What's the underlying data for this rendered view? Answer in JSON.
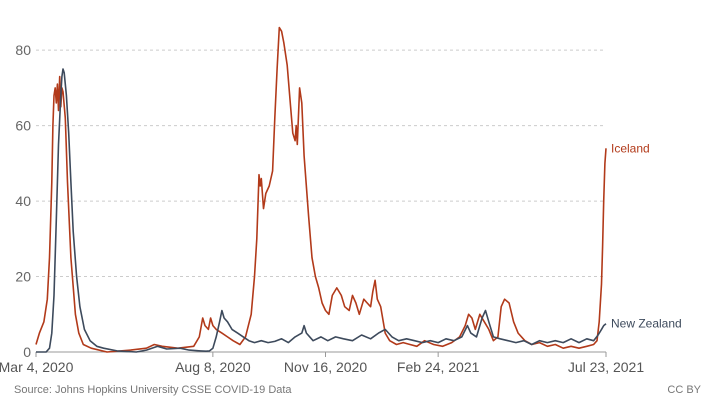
{
  "chart_data": {
    "type": "line",
    "x_ticks": [
      "Mar 4, 2020",
      "Aug 8, 2020",
      "Nov 16, 2020",
      "Feb 24, 2021",
      "Jul 23, 2021"
    ],
    "x_tick_dates": [
      "2020-03-04",
      "2020-08-08",
      "2020-11-16",
      "2021-02-24",
      "2021-07-23"
    ],
    "y_ticks": [
      0,
      20,
      40,
      60,
      80
    ],
    "ylim": [
      0,
      88
    ],
    "grid": "horizontal dashed",
    "series": [
      {
        "name": "Iceland",
        "color": "#b23a1a",
        "points": [
          [
            "2020-03-04",
            2
          ],
          [
            "2020-03-07",
            5
          ],
          [
            "2020-03-11",
            8
          ],
          [
            "2020-03-14",
            14
          ],
          [
            "2020-03-16",
            25
          ],
          [
            "2020-03-18",
            45
          ],
          [
            "2020-03-19",
            60
          ],
          [
            "2020-03-20",
            68
          ],
          [
            "2020-03-21",
            70
          ],
          [
            "2020-03-22",
            66
          ],
          [
            "2020-03-23",
            71
          ],
          [
            "2020-03-24",
            64
          ],
          [
            "2020-03-25",
            73
          ],
          [
            "2020-03-26",
            65
          ],
          [
            "2020-03-27",
            70
          ],
          [
            "2020-03-28",
            69
          ],
          [
            "2020-03-30",
            62
          ],
          [
            "2020-04-01",
            45
          ],
          [
            "2020-04-04",
            25
          ],
          [
            "2020-04-08",
            10
          ],
          [
            "2020-04-11",
            5
          ],
          [
            "2020-04-15",
            2
          ],
          [
            "2020-04-22",
            1
          ],
          [
            "2020-05-06",
            0
          ],
          [
            "2020-05-27",
            0.5
          ],
          [
            "2020-06-10",
            1
          ],
          [
            "2020-06-17",
            2
          ],
          [
            "2020-06-24",
            1.5
          ],
          [
            "2020-07-08",
            1
          ],
          [
            "2020-07-22",
            1.5
          ],
          [
            "2020-07-27",
            4
          ],
          [
            "2020-07-30",
            9
          ],
          [
            "2020-08-01",
            7
          ],
          [
            "2020-08-04",
            6
          ],
          [
            "2020-08-06",
            9
          ],
          [
            "2020-08-08",
            7
          ],
          [
            "2020-08-11",
            6
          ],
          [
            "2020-08-16",
            5
          ],
          [
            "2020-08-21",
            4
          ],
          [
            "2020-08-26",
            3
          ],
          [
            "2020-09-01",
            2
          ],
          [
            "2020-09-06",
            4
          ],
          [
            "2020-09-11",
            10
          ],
          [
            "2020-09-14",
            20
          ],
          [
            "2020-09-16",
            30
          ],
          [
            "2020-09-18",
            47
          ],
          [
            "2020-09-19",
            44
          ],
          [
            "2020-09-20",
            46
          ],
          [
            "2020-09-22",
            38
          ],
          [
            "2020-09-24",
            42
          ],
          [
            "2020-09-27",
            44
          ],
          [
            "2020-09-30",
            48
          ],
          [
            "2020-10-02",
            62
          ],
          [
            "2020-10-04",
            75
          ],
          [
            "2020-10-06",
            86
          ],
          [
            "2020-10-08",
            85
          ],
          [
            "2020-10-10",
            82
          ],
          [
            "2020-10-13",
            76
          ],
          [
            "2020-10-16",
            65
          ],
          [
            "2020-10-18",
            58
          ],
          [
            "2020-10-20",
            56
          ],
          [
            "2020-10-21",
            60
          ],
          [
            "2020-10-22",
            55
          ],
          [
            "2020-10-24",
            70
          ],
          [
            "2020-10-26",
            66
          ],
          [
            "2020-10-28",
            52
          ],
          [
            "2020-11-01",
            36
          ],
          [
            "2020-11-04",
            25
          ],
          [
            "2020-11-07",
            20
          ],
          [
            "2020-11-10",
            17
          ],
          [
            "2020-11-13",
            13
          ],
          [
            "2020-11-16",
            11
          ],
          [
            "2020-11-19",
            10
          ],
          [
            "2020-11-22",
            15
          ],
          [
            "2020-11-26",
            17
          ],
          [
            "2020-11-30",
            15
          ],
          [
            "2020-12-03",
            12
          ],
          [
            "2020-12-07",
            11
          ],
          [
            "2020-12-10",
            15
          ],
          [
            "2020-12-13",
            13
          ],
          [
            "2020-12-16",
            10
          ],
          [
            "2020-12-20",
            14
          ],
          [
            "2020-12-23",
            13
          ],
          [
            "2020-12-26",
            12
          ],
          [
            "2020-12-28",
            16
          ],
          [
            "2020-12-30",
            19
          ],
          [
            "2021-01-01",
            14
          ],
          [
            "2021-01-04",
            12
          ],
          [
            "2021-01-08",
            5
          ],
          [
            "2021-01-12",
            3
          ],
          [
            "2021-01-18",
            2
          ],
          [
            "2021-01-24",
            2.5
          ],
          [
            "2021-01-30",
            2
          ],
          [
            "2021-02-05",
            1.5
          ],
          [
            "2021-02-12",
            3
          ],
          [
            "2021-02-20",
            2
          ],
          [
            "2021-02-28",
            1.5
          ],
          [
            "2021-03-08",
            2.5
          ],
          [
            "2021-03-15",
            4
          ],
          [
            "2021-03-20",
            7
          ],
          [
            "2021-03-23",
            10
          ],
          [
            "2021-03-26",
            9
          ],
          [
            "2021-03-29",
            6
          ],
          [
            "2021-04-02",
            10
          ],
          [
            "2021-04-06",
            8
          ],
          [
            "2021-04-10",
            6
          ],
          [
            "2021-04-14",
            3
          ],
          [
            "2021-04-18",
            4
          ],
          [
            "2021-04-21",
            12
          ],
          [
            "2021-04-24",
            14
          ],
          [
            "2021-04-28",
            13
          ],
          [
            "2021-05-02",
            8
          ],
          [
            "2021-05-06",
            5
          ],
          [
            "2021-05-12",
            3
          ],
          [
            "2021-05-18",
            2
          ],
          [
            "2021-05-25",
            2.5
          ],
          [
            "2021-06-01",
            1.5
          ],
          [
            "2021-06-08",
            2
          ],
          [
            "2021-06-15",
            1
          ],
          [
            "2021-06-22",
            1.5
          ],
          [
            "2021-06-29",
            1
          ],
          [
            "2021-07-06",
            1.5
          ],
          [
            "2021-07-12",
            2
          ],
          [
            "2021-07-15",
            3
          ],
          [
            "2021-07-17",
            8
          ],
          [
            "2021-07-19",
            18
          ],
          [
            "2021-07-20",
            28
          ],
          [
            "2021-07-21",
            40
          ],
          [
            "2021-07-22",
            50
          ],
          [
            "2021-07-23",
            54
          ]
        ]
      },
      {
        "name": "New Zealand",
        "color": "#3d4a5c",
        "points": [
          [
            "2020-03-04",
            0
          ],
          [
            "2020-03-13",
            0
          ],
          [
            "2020-03-16",
            1
          ],
          [
            "2020-03-18",
            5
          ],
          [
            "2020-03-20",
            15
          ],
          [
            "2020-03-22",
            35
          ],
          [
            "2020-03-24",
            55
          ],
          [
            "2020-03-26",
            68
          ],
          [
            "2020-03-27",
            73
          ],
          [
            "2020-03-28",
            75
          ],
          [
            "2020-03-29",
            74
          ],
          [
            "2020-03-31",
            68
          ],
          [
            "2020-04-02",
            58
          ],
          [
            "2020-04-04",
            45
          ],
          [
            "2020-04-06",
            32
          ],
          [
            "2020-04-09",
            20
          ],
          [
            "2020-04-12",
            12
          ],
          [
            "2020-04-16",
            6
          ],
          [
            "2020-04-21",
            3
          ],
          [
            "2020-04-27",
            1.5
          ],
          [
            "2020-05-03",
            1
          ],
          [
            "2020-05-15",
            0.3
          ],
          [
            "2020-06-01",
            0
          ],
          [
            "2020-06-10",
            0.5
          ],
          [
            "2020-06-20",
            1.5
          ],
          [
            "2020-06-28",
            0.8
          ],
          [
            "2020-07-10",
            1
          ],
          [
            "2020-07-18",
            0.5
          ],
          [
            "2020-07-28",
            0.3
          ],
          [
            "2020-08-02",
            0.2
          ],
          [
            "2020-08-05",
            0.3
          ],
          [
            "2020-08-08",
            1
          ],
          [
            "2020-08-11",
            4
          ],
          [
            "2020-08-14",
            8
          ],
          [
            "2020-08-16",
            11
          ],
          [
            "2020-08-18",
            9
          ],
          [
            "2020-08-21",
            8
          ],
          [
            "2020-08-25",
            6
          ],
          [
            "2020-08-30",
            5
          ],
          [
            "2020-09-04",
            4
          ],
          [
            "2020-09-09",
            3
          ],
          [
            "2020-09-14",
            2.5
          ],
          [
            "2020-09-20",
            3
          ],
          [
            "2020-09-26",
            2.5
          ],
          [
            "2020-10-02",
            2.8
          ],
          [
            "2020-10-08",
            3.5
          ],
          [
            "2020-10-14",
            2.5
          ],
          [
            "2020-10-20",
            4
          ],
          [
            "2020-10-26",
            5
          ],
          [
            "2020-10-28",
            7
          ],
          [
            "2020-10-30",
            5
          ],
          [
            "2020-11-05",
            3
          ],
          [
            "2020-11-12",
            4
          ],
          [
            "2020-11-18",
            3
          ],
          [
            "2020-11-25",
            4
          ],
          [
            "2020-12-02",
            3.5
          ],
          [
            "2020-12-10",
            3
          ],
          [
            "2020-12-18",
            4.5
          ],
          [
            "2020-12-26",
            3.5
          ],
          [
            "2021-01-02",
            5
          ],
          [
            "2021-01-08",
            6
          ],
          [
            "2021-01-14",
            4
          ],
          [
            "2021-01-20",
            3
          ],
          [
            "2021-01-27",
            3.5
          ],
          [
            "2021-02-03",
            3
          ],
          [
            "2021-02-10",
            2.5
          ],
          [
            "2021-02-17",
            3
          ],
          [
            "2021-02-24",
            2.5
          ],
          [
            "2021-03-03",
            3.5
          ],
          [
            "2021-03-10",
            3
          ],
          [
            "2021-03-17",
            4
          ],
          [
            "2021-03-22",
            7
          ],
          [
            "2021-03-25",
            5
          ],
          [
            "2021-03-30",
            4
          ],
          [
            "2021-04-04",
            9
          ],
          [
            "2021-04-07",
            11
          ],
          [
            "2021-04-10",
            8
          ],
          [
            "2021-04-14",
            4
          ],
          [
            "2021-04-20",
            3.5
          ],
          [
            "2021-04-27",
            3
          ],
          [
            "2021-05-04",
            2.5
          ],
          [
            "2021-05-11",
            3
          ],
          [
            "2021-05-18",
            2
          ],
          [
            "2021-05-25",
            3
          ],
          [
            "2021-06-01",
            2.5
          ],
          [
            "2021-06-08",
            3
          ],
          [
            "2021-06-15",
            2.5
          ],
          [
            "2021-06-22",
            3.5
          ],
          [
            "2021-06-29",
            2.5
          ],
          [
            "2021-07-06",
            3.5
          ],
          [
            "2021-07-12",
            3
          ],
          [
            "2021-07-16",
            4.5
          ],
          [
            "2021-07-19",
            6
          ],
          [
            "2021-07-21",
            7
          ],
          [
            "2021-07-23",
            7.5
          ]
        ]
      }
    ]
  },
  "footer": {
    "source": "Source: Johns Hopkins University CSSE COVID-19 Data",
    "license": "CC BY"
  }
}
